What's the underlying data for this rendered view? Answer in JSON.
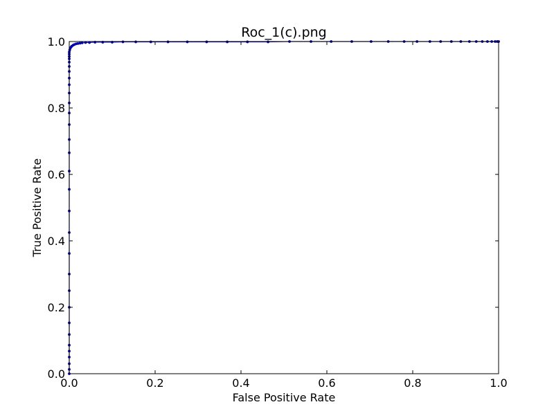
{
  "chart_data": {
    "type": "line",
    "title": "Roc_1(c).png",
    "xlabel": "False Positive Rate",
    "ylabel": "True Positive Rate",
    "xlim": [
      0.0,
      1.0
    ],
    "ylim": [
      0.0,
      1.0
    ],
    "xticks": [
      "0.0",
      "0.2",
      "0.4",
      "0.6",
      "0.8",
      "1.0"
    ],
    "yticks": [
      "0.0",
      "0.2",
      "0.4",
      "0.6",
      "0.8",
      "1.0"
    ],
    "grid": false,
    "legend": "none",
    "series": [
      {
        "color": "#0000cc",
        "marker": "dot",
        "x": [
          0.0,
          0.0,
          0.0,
          0.0,
          0.0,
          0.0,
          0.0,
          0.0,
          0.0,
          0.0,
          0.0,
          0.0,
          0.0,
          0.0,
          0.0,
          0.0,
          0.0,
          0.0,
          0.0,
          0.0,
          0.0,
          0.0,
          0.0,
          0.0,
          0.0,
          0.0,
          0.0,
          0.0,
          0.0,
          0.0,
          0.0,
          0.001,
          0.002,
          0.004,
          0.006,
          0.009,
          0.012,
          0.016,
          0.02,
          0.025,
          0.03,
          0.038,
          0.047,
          0.06,
          0.078,
          0.1,
          0.125,
          0.155,
          0.19,
          0.23,
          0.275,
          0.32,
          0.368,
          0.415,
          0.463,
          0.513,
          0.563,
          0.61,
          0.658,
          0.703,
          0.743,
          0.78,
          0.81,
          0.84,
          0.865,
          0.89,
          0.912,
          0.932,
          0.948,
          0.962,
          0.974,
          0.984,
          0.992,
          0.997,
          1.0
        ],
        "y": [
          0.0,
          0.013,
          0.03,
          0.05,
          0.068,
          0.086,
          0.118,
          0.153,
          0.2,
          0.25,
          0.3,
          0.362,
          0.425,
          0.49,
          0.555,
          0.61,
          0.665,
          0.705,
          0.75,
          0.785,
          0.815,
          0.845,
          0.87,
          0.89,
          0.91,
          0.925,
          0.938,
          0.948,
          0.955,
          0.962,
          0.968,
          0.974,
          0.979,
          0.983,
          0.986,
          0.989,
          0.991,
          0.993,
          0.994,
          0.995,
          0.996,
          0.997,
          0.997,
          0.998,
          0.998,
          0.998,
          0.999,
          0.999,
          0.999,
          0.999,
          0.999,
          0.999,
          0.999,
          0.999,
          0.999,
          1.0,
          1.0,
          1.0,
          1.0,
          1.0,
          1.0,
          1.0,
          1.0,
          1.0,
          1.0,
          1.0,
          1.0,
          1.0,
          1.0,
          1.0,
          1.0,
          1.0,
          1.0,
          1.0,
          1.0
        ]
      }
    ]
  }
}
